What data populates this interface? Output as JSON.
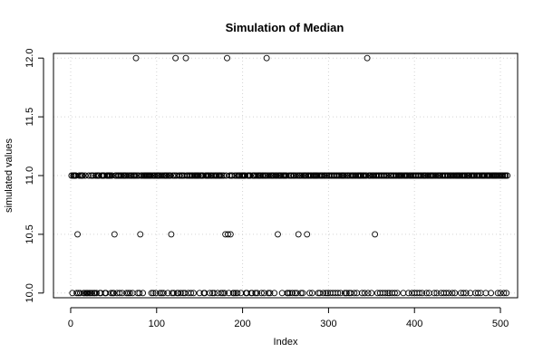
{
  "chart_data": {
    "type": "scatter",
    "title": "Simulation of Median",
    "xlabel": "Index",
    "ylabel": "simulated values",
    "xlim": [
      -20,
      520
    ],
    "ylim": [
      9.96,
      12.04
    ],
    "xticks": [
      0,
      100,
      200,
      300,
      400,
      500
    ],
    "xtick_labels": [
      "0",
      "100",
      "200",
      "300",
      "400",
      "500"
    ],
    "yticks": [
      10.0,
      10.5,
      11.0,
      11.5,
      12.0
    ],
    "ytick_labels": [
      "10.0",
      "10.5",
      "11.0",
      "11.5",
      "12.0"
    ],
    "grid": true,
    "marker": "open-circle",
    "series": [
      {
        "values": [
          11,
          10,
          11,
          11,
          11,
          11,
          10,
          10.5,
          10,
          11,
          10,
          11,
          11,
          11,
          10,
          10,
          11,
          10,
          10,
          10,
          11,
          10,
          10,
          11,
          10,
          11,
          10,
          10,
          11,
          10,
          11,
          11,
          11,
          10,
          10,
          11,
          11,
          11,
          11,
          10,
          10,
          11,
          11,
          11,
          11,
          11,
          10,
          11,
          10,
          10,
          10.5,
          11,
          11,
          10,
          11,
          11,
          10,
          11,
          11,
          10,
          11,
          11,
          11,
          11,
          10,
          11,
          10,
          11,
          10,
          11,
          11,
          10,
          11,
          11,
          11,
          12,
          11,
          10,
          11,
          10,
          10.5,
          11,
          11,
          10,
          11,
          11,
          11,
          11,
          11,
          11,
          11,
          11,
          11,
          10,
          11,
          10,
          11,
          11,
          10,
          11,
          11,
          11,
          11,
          10,
          11,
          10,
          11,
          10,
          11,
          11,
          11,
          11,
          10,
          11,
          11,
          11,
          10.5,
          10,
          11,
          10,
          11,
          12,
          11,
          10,
          10,
          11,
          11,
          10,
          11,
          11,
          10,
          11,
          10,
          12,
          11,
          11,
          10,
          11,
          11,
          10,
          11,
          11,
          10,
          11,
          11,
          11,
          11,
          11,
          11,
          10,
          11,
          11,
          11,
          11,
          10,
          10,
          11,
          11,
          11,
          11,
          11,
          10,
          11,
          11,
          10,
          11,
          10,
          11,
          11,
          11,
          10,
          11,
          11,
          11,
          10,
          11,
          10,
          11,
          10,
          10.5,
          11,
          12,
          10.5,
          10,
          11,
          10.5,
          11,
          11,
          10,
          10,
          11,
          10,
          11,
          10,
          11,
          11,
          11,
          10,
          11,
          11,
          11,
          11,
          11,
          10,
          10,
          11,
          11,
          11,
          11,
          10,
          10,
          11,
          11,
          11,
          10,
          11,
          10,
          11,
          11,
          11,
          11,
          10,
          11,
          11,
          10,
          11,
          11,
          12,
          11,
          10,
          11,
          10,
          11,
          11,
          11,
          11,
          10,
          11,
          11,
          11,
          10.5,
          11,
          11,
          11,
          11,
          10,
          11,
          11,
          11,
          11,
          11,
          10,
          10,
          11,
          10,
          11,
          11,
          10,
          11,
          11,
          10,
          11,
          10,
          11,
          10.5,
          11,
          11,
          10,
          11,
          10,
          11,
          11,
          11,
          11,
          10.5,
          11,
          11,
          10,
          11,
          11,
          10,
          11,
          11,
          11,
          11,
          11,
          11,
          10,
          11,
          10,
          11,
          11,
          11,
          10,
          11,
          11,
          10,
          11,
          10,
          11,
          11,
          10,
          11,
          11,
          10,
          11,
          11,
          10,
          11,
          11,
          10,
          11,
          11,
          10,
          11,
          11,
          11,
          11,
          10,
          11,
          10,
          11,
          11,
          10,
          11,
          10,
          11,
          11,
          11,
          10,
          11,
          11,
          10,
          11,
          11,
          11,
          11,
          11,
          10,
          11,
          11,
          10,
          11,
          11,
          12,
          10,
          11,
          11,
          11,
          10,
          11,
          11,
          11,
          10.5,
          11,
          11,
          10,
          11,
          11,
          10,
          11,
          11,
          10,
          11,
          11,
          10,
          11,
          11,
          10,
          11,
          10,
          11,
          11,
          10,
          11,
          11,
          10,
          11,
          11,
          10,
          11,
          11,
          11,
          11,
          11,
          11,
          10,
          11,
          11,
          11,
          11,
          11,
          10,
          11,
          11,
          11,
          10,
          11,
          11,
          10,
          11,
          11,
          10,
          11,
          11,
          10,
          11,
          11,
          10,
          11,
          11,
          11,
          11,
          10,
          11,
          11,
          10,
          11,
          11,
          11,
          11,
          11,
          10,
          11,
          11,
          10,
          11,
          11,
          11,
          11,
          10,
          11,
          11,
          10,
          11,
          11,
          10,
          11,
          11,
          10,
          11,
          11,
          11,
          10,
          11,
          11,
          10,
          11,
          11,
          11,
          11,
          11,
          11,
          10,
          11,
          11,
          10,
          11,
          11,
          10,
          11,
          11,
          11,
          11,
          10,
          11,
          11,
          11,
          11,
          11,
          10,
          11,
          11,
          10,
          11,
          11,
          10,
          11,
          11,
          11,
          11,
          11,
          10,
          11,
          11,
          11,
          11,
          11,
          10,
          11,
          11,
          11,
          11,
          11,
          11,
          11,
          10,
          11,
          11,
          10,
          11,
          11,
          11,
          10,
          11,
          11,
          10,
          11
        ]
      }
    ]
  }
}
